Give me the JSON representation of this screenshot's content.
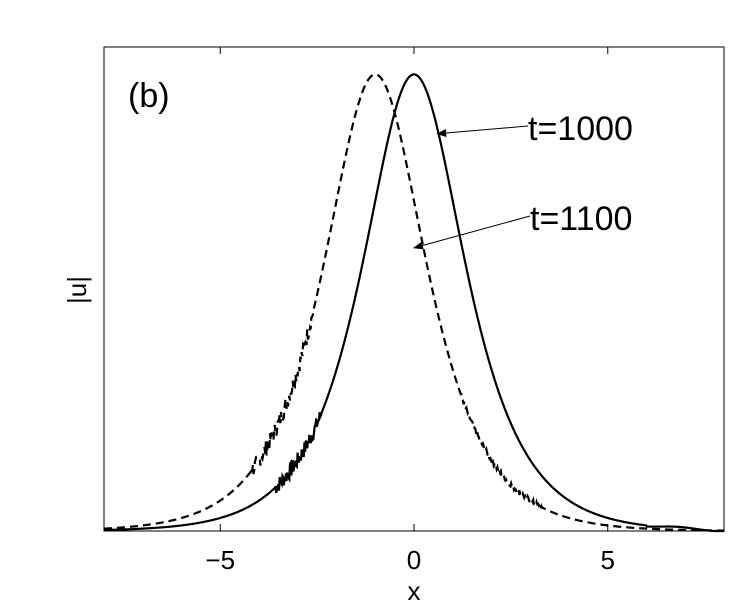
{
  "chart_data": {
    "type": "line",
    "panel_label": "(b)",
    "xlabel": "x",
    "ylabel": "|u|",
    "xlim": [
      -8,
      8
    ],
    "ylim": [
      0,
      1.06
    ],
    "xticks": [
      -5,
      0,
      5
    ],
    "xtick_labels": [
      "−5",
      "0",
      "5"
    ],
    "grid": false,
    "series": [
      {
        "name": "t=1000",
        "style": "solid",
        "peak_x": 0.0,
        "amplitude": 1.0
      },
      {
        "name": "t=1100",
        "style": "dashed",
        "peak_x": -1.0,
        "amplitude": 1.0
      }
    ],
    "annotations": [
      {
        "text": "t=1000",
        "points_to": [
          0.6,
          0.87
        ]
      },
      {
        "text": "t=1100",
        "points_to": [
          0.0,
          0.62
        ]
      }
    ]
  }
}
